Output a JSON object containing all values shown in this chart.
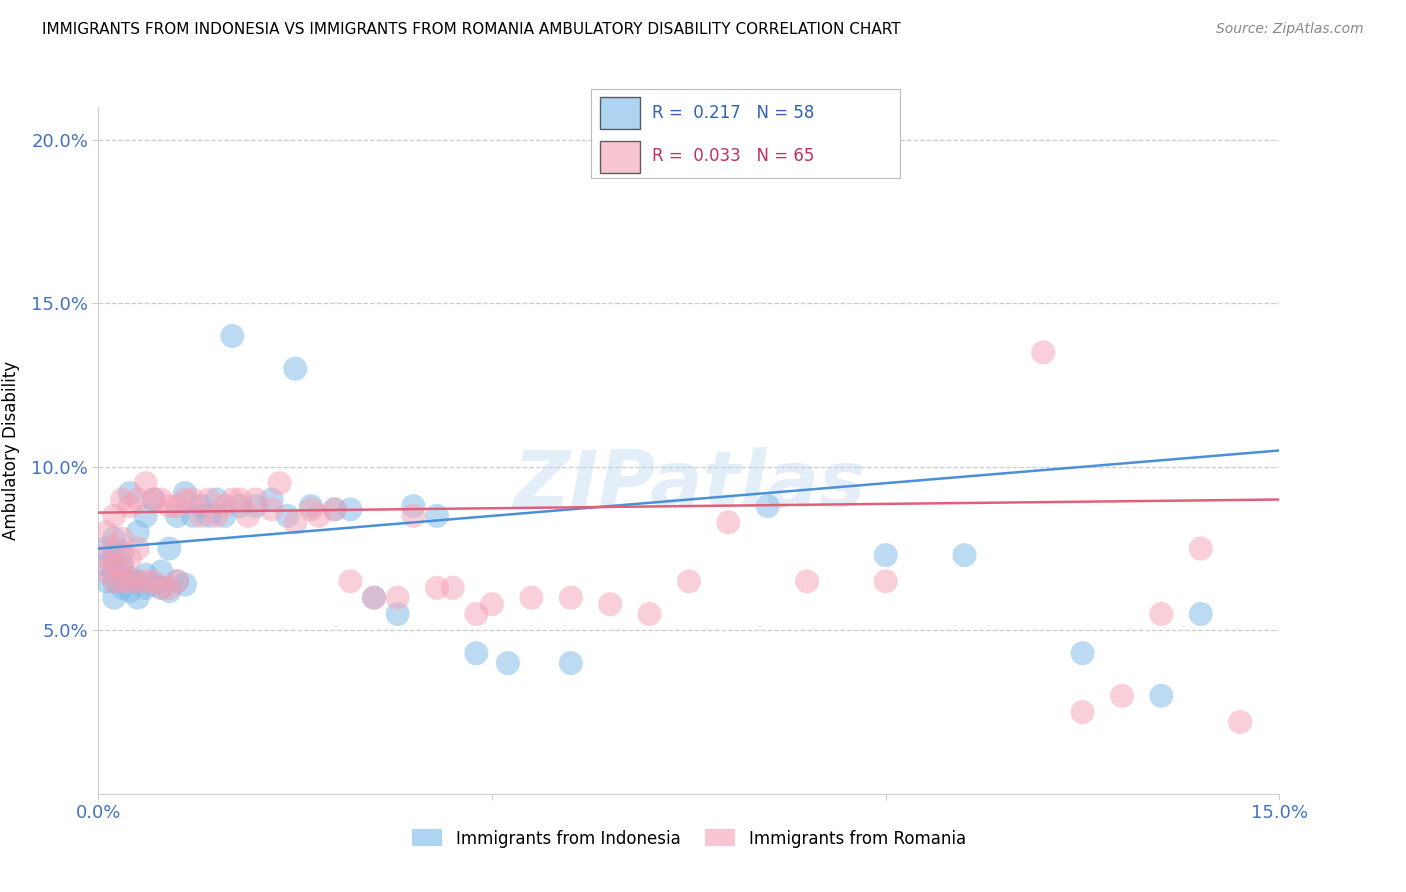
{
  "title": "IMMIGRANTS FROM INDONESIA VS IMMIGRANTS FROM ROMANIA AMBULATORY DISABILITY CORRELATION CHART",
  "source": "Source: ZipAtlas.com",
  "ylabel": "Ambulatory Disability",
  "xlim": [
    0.0,
    0.15
  ],
  "ylim": [
    0.0,
    0.21
  ],
  "indonesia_R": 0.217,
  "indonesia_N": 58,
  "romania_R": 0.033,
  "romania_N": 65,
  "indonesia_color": "#7ab8e8",
  "romania_color": "#f4a0b5",
  "indonesia_line_color": "#4a90d9",
  "romania_line_color": "#e0607a",
  "tick_color": "#4472C4",
  "watermark": "ZIPatlas",
  "indonesia_x": [
    0.001,
    0.001,
    0.001,
    0.002,
    0.002,
    0.002,
    0.002,
    0.002,
    0.003,
    0.003,
    0.003,
    0.003,
    0.004,
    0.004,
    0.004,
    0.005,
    0.005,
    0.005,
    0.006,
    0.006,
    0.006,
    0.007,
    0.007,
    0.008,
    0.008,
    0.009,
    0.009,
    0.01,
    0.01,
    0.011,
    0.011,
    0.012,
    0.013,
    0.014,
    0.015,
    0.016,
    0.017,
    0.018,
    0.02,
    0.022,
    0.024,
    0.025,
    0.027,
    0.03,
    0.032,
    0.035,
    0.038,
    0.04,
    0.043,
    0.048,
    0.052,
    0.06,
    0.085,
    0.1,
    0.11,
    0.125,
    0.135,
    0.14
  ],
  "indonesia_y": [
    0.065,
    0.07,
    0.075,
    0.06,
    0.065,
    0.068,
    0.072,
    0.078,
    0.063,
    0.067,
    0.07,
    0.074,
    0.062,
    0.066,
    0.092,
    0.06,
    0.065,
    0.08,
    0.063,
    0.067,
    0.085,
    0.064,
    0.09,
    0.063,
    0.068,
    0.062,
    0.075,
    0.065,
    0.085,
    0.064,
    0.092,
    0.085,
    0.088,
    0.085,
    0.09,
    0.085,
    0.14,
    0.088,
    0.088,
    0.09,
    0.085,
    0.13,
    0.088,
    0.087,
    0.087,
    0.06,
    0.055,
    0.088,
    0.085,
    0.043,
    0.04,
    0.04,
    0.088,
    0.073,
    0.073,
    0.043,
    0.03,
    0.055
  ],
  "romania_x": [
    0.001,
    0.001,
    0.001,
    0.002,
    0.002,
    0.002,
    0.002,
    0.003,
    0.003,
    0.003,
    0.003,
    0.004,
    0.004,
    0.004,
    0.005,
    0.005,
    0.005,
    0.006,
    0.006,
    0.007,
    0.007,
    0.008,
    0.008,
    0.009,
    0.009,
    0.01,
    0.01,
    0.011,
    0.012,
    0.013,
    0.014,
    0.015,
    0.016,
    0.017,
    0.018,
    0.019,
    0.02,
    0.022,
    0.023,
    0.025,
    0.027,
    0.028,
    0.03,
    0.032,
    0.035,
    0.038,
    0.04,
    0.043,
    0.045,
    0.048,
    0.05,
    0.055,
    0.06,
    0.065,
    0.07,
    0.075,
    0.08,
    0.09,
    0.1,
    0.12,
    0.125,
    0.13,
    0.135,
    0.14,
    0.145
  ],
  "romania_y": [
    0.068,
    0.073,
    0.08,
    0.065,
    0.07,
    0.075,
    0.085,
    0.065,
    0.07,
    0.078,
    0.09,
    0.065,
    0.072,
    0.088,
    0.065,
    0.075,
    0.09,
    0.065,
    0.095,
    0.065,
    0.09,
    0.063,
    0.09,
    0.063,
    0.088,
    0.065,
    0.088,
    0.09,
    0.09,
    0.085,
    0.09,
    0.085,
    0.088,
    0.09,
    0.09,
    0.085,
    0.09,
    0.087,
    0.095,
    0.083,
    0.087,
    0.085,
    0.087,
    0.065,
    0.06,
    0.06,
    0.085,
    0.063,
    0.063,
    0.055,
    0.058,
    0.06,
    0.06,
    0.058,
    0.055,
    0.065,
    0.083,
    0.065,
    0.065,
    0.135,
    0.025,
    0.03,
    0.055,
    0.075,
    0.022
  ]
}
